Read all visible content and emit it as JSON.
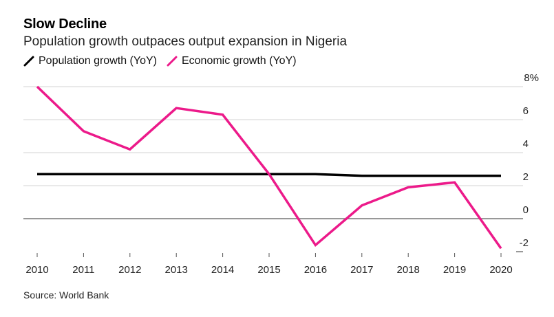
{
  "chart_data": {
    "type": "line",
    "title": "Slow Decline",
    "subtitle": "Population growth outpaces output expansion in Nigeria",
    "xlabel": "",
    "ylabel": "",
    "x": [
      "2010",
      "2011",
      "2012",
      "2013",
      "2014",
      "2015",
      "2016",
      "2017",
      "2018",
      "2019",
      "2020"
    ],
    "series": [
      {
        "name": "Population growth (YoY)",
        "color": "#000000",
        "values": [
          2.7,
          2.7,
          2.7,
          2.7,
          2.7,
          2.7,
          2.7,
          2.6,
          2.6,
          2.6,
          2.6
        ]
      },
      {
        "name": "Economic growth (YoY)",
        "color": "#ec1a8a",
        "values": [
          8.0,
          5.3,
          4.2,
          6.7,
          6.3,
          2.7,
          -1.6,
          0.8,
          1.9,
          2.2,
          -1.8
        ]
      }
    ],
    "ylim": [
      -2,
      8
    ],
    "yticks": [
      {
        "value": 8,
        "label": "8%"
      },
      {
        "value": 6,
        "label": "6"
      },
      {
        "value": 4,
        "label": "4"
      },
      {
        "value": 2,
        "label": "2"
      },
      {
        "value": 0,
        "label": "0"
      },
      {
        "value": -2,
        "label": "-2"
      }
    ],
    "y_axis_side": "right",
    "grid": true,
    "legend_position": "top-left",
    "source": "Source: World Bank"
  }
}
